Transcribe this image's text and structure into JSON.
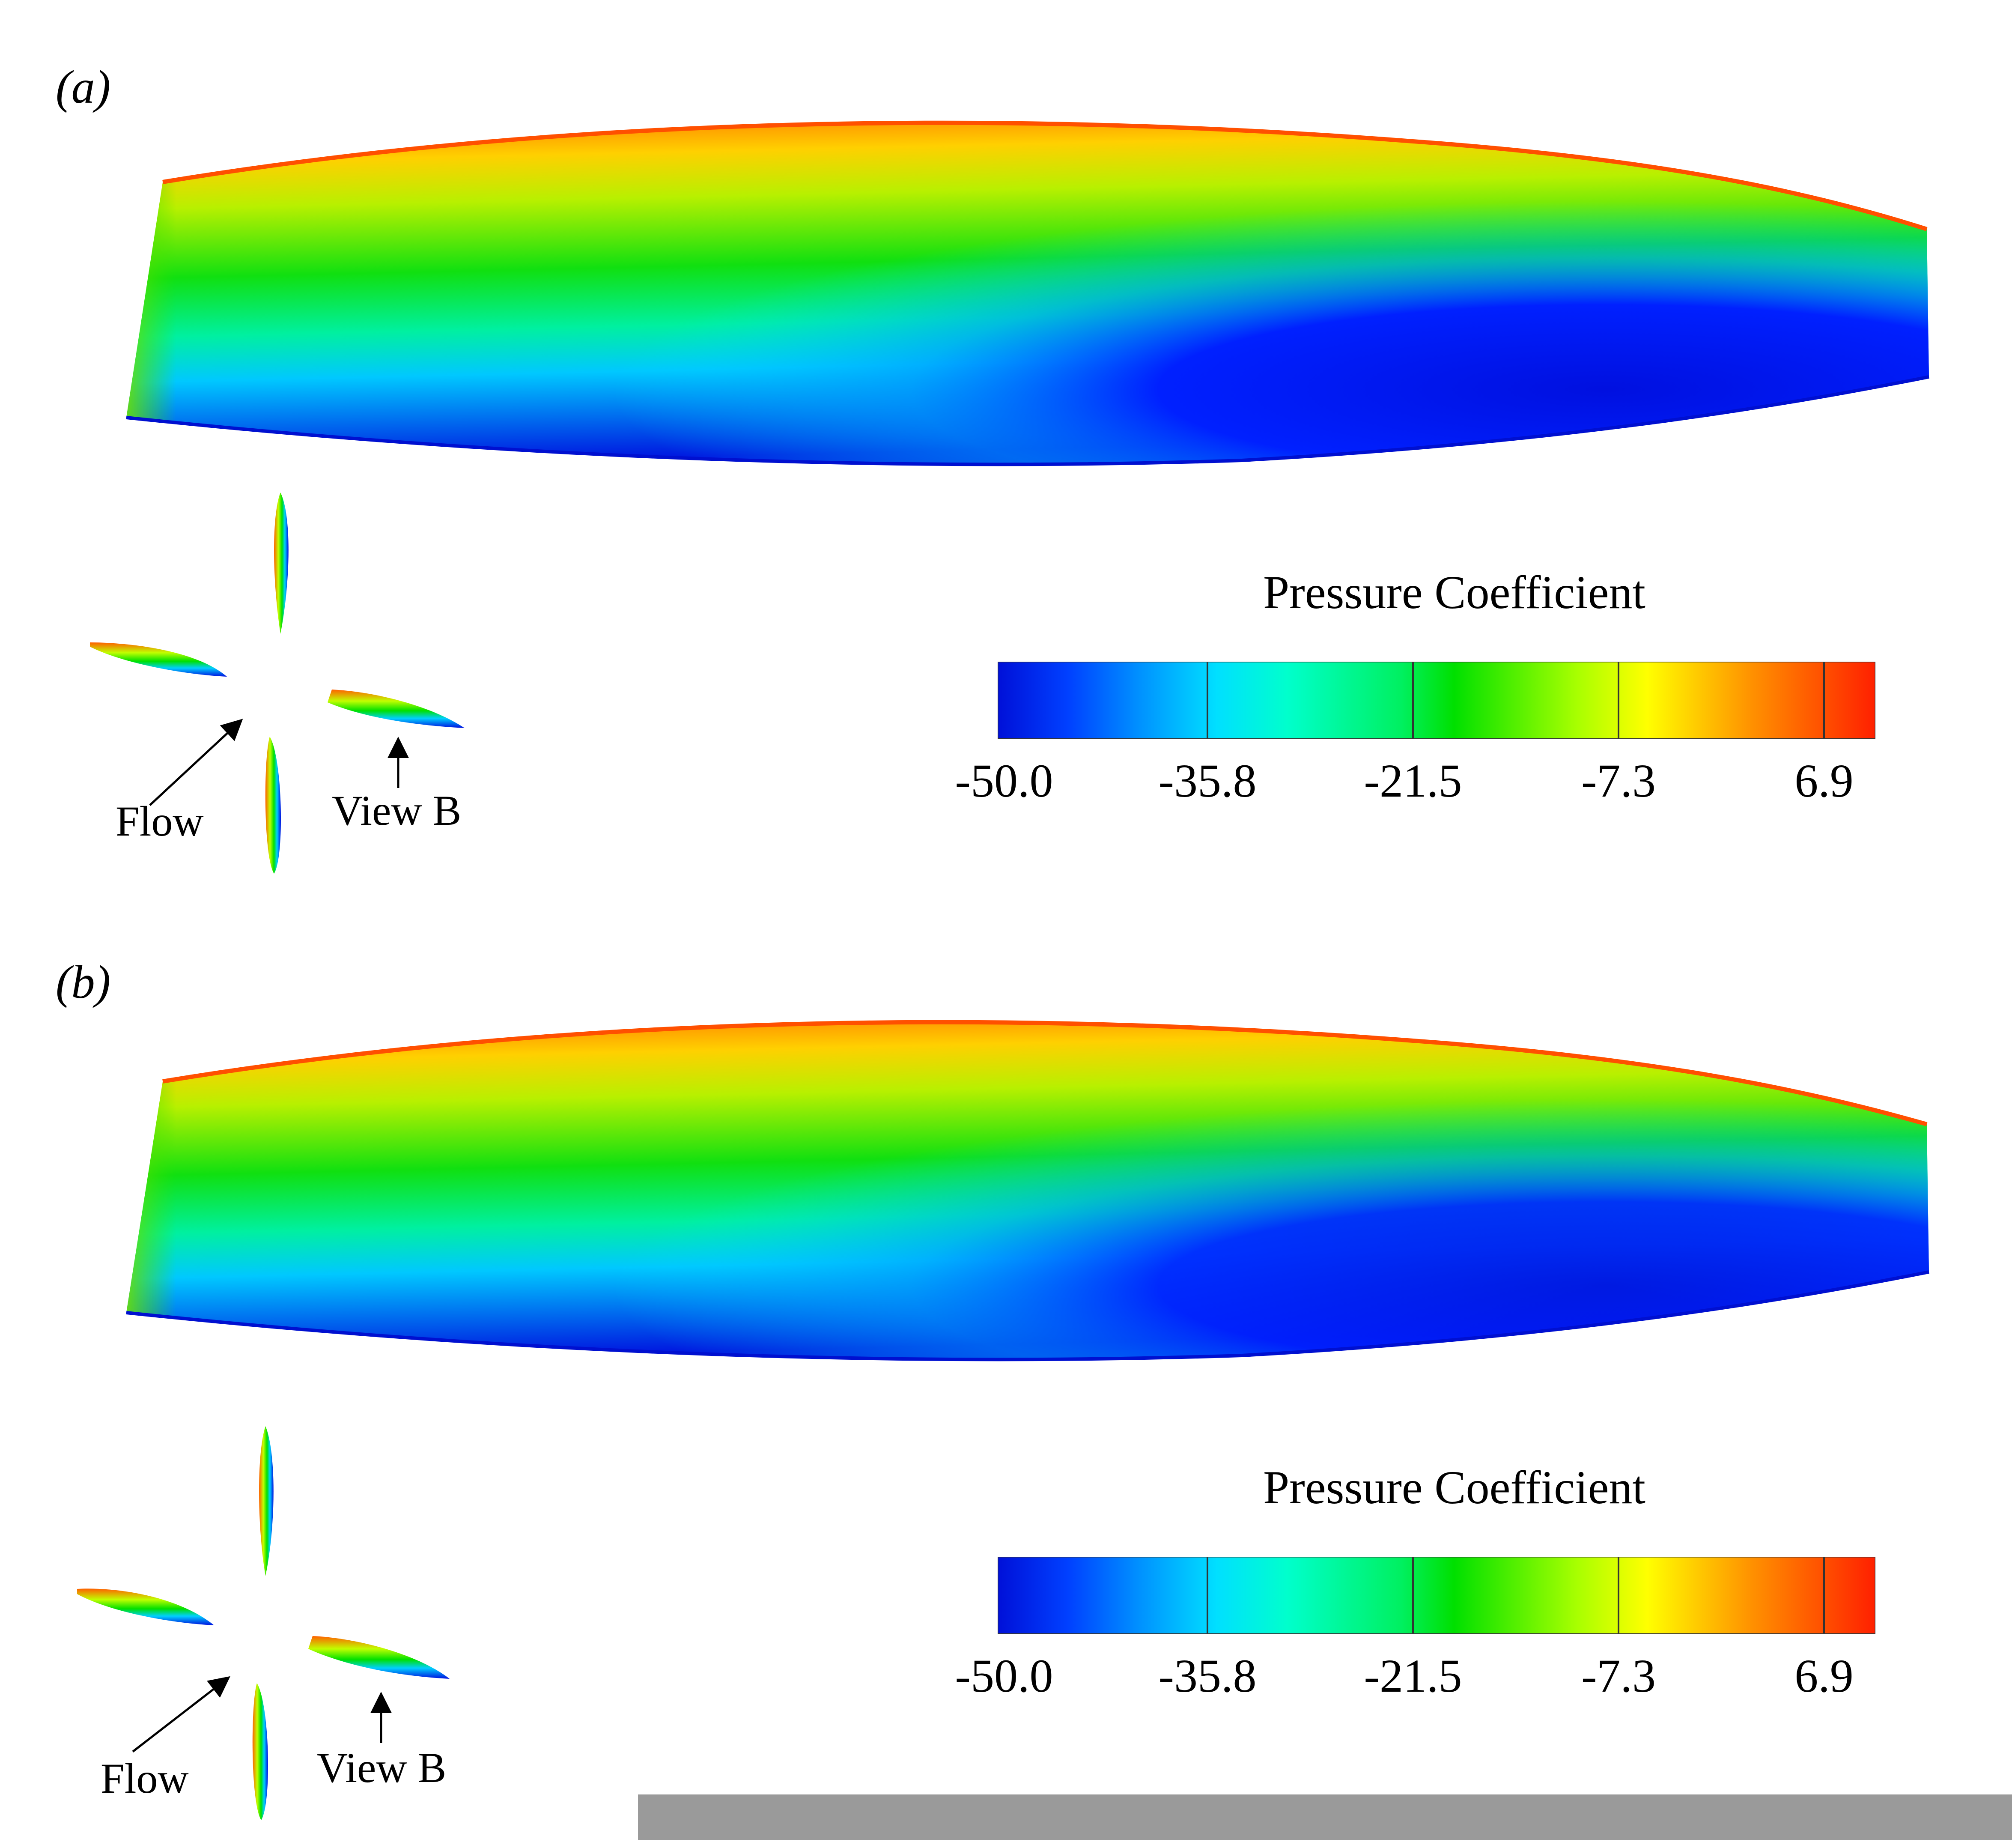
{
  "panels": [
    {
      "label": "(a)",
      "inset": {
        "flow_label": "Flow",
        "view_label": "View B"
      },
      "legend": {
        "title": "Pressure Coefficient",
        "ticks": [
          "-50.0",
          "-35.8",
          "-21.5",
          "-7.3",
          "6.9"
        ],
        "range": [
          -50.0,
          6.9
        ]
      }
    },
    {
      "label": "(b)",
      "inset": {
        "flow_label": "Flow",
        "view_label": "View B"
      },
      "legend": {
        "title": "Pressure Coefficient",
        "ticks": [
          "-50.0",
          "-35.8",
          "-21.5",
          "-7.3",
          "6.9"
        ],
        "range": [
          -50.0,
          6.9
        ]
      }
    }
  ],
  "colors": {
    "colormap": [
      "#0016ff",
      "#00c8ff",
      "#00ffd0",
      "#00e600",
      "#c8ff00",
      "#ffff00",
      "#ff8000",
      "#ff2000"
    ],
    "background": "#ffffff",
    "footer_bar": "#9a9a9a"
  }
}
